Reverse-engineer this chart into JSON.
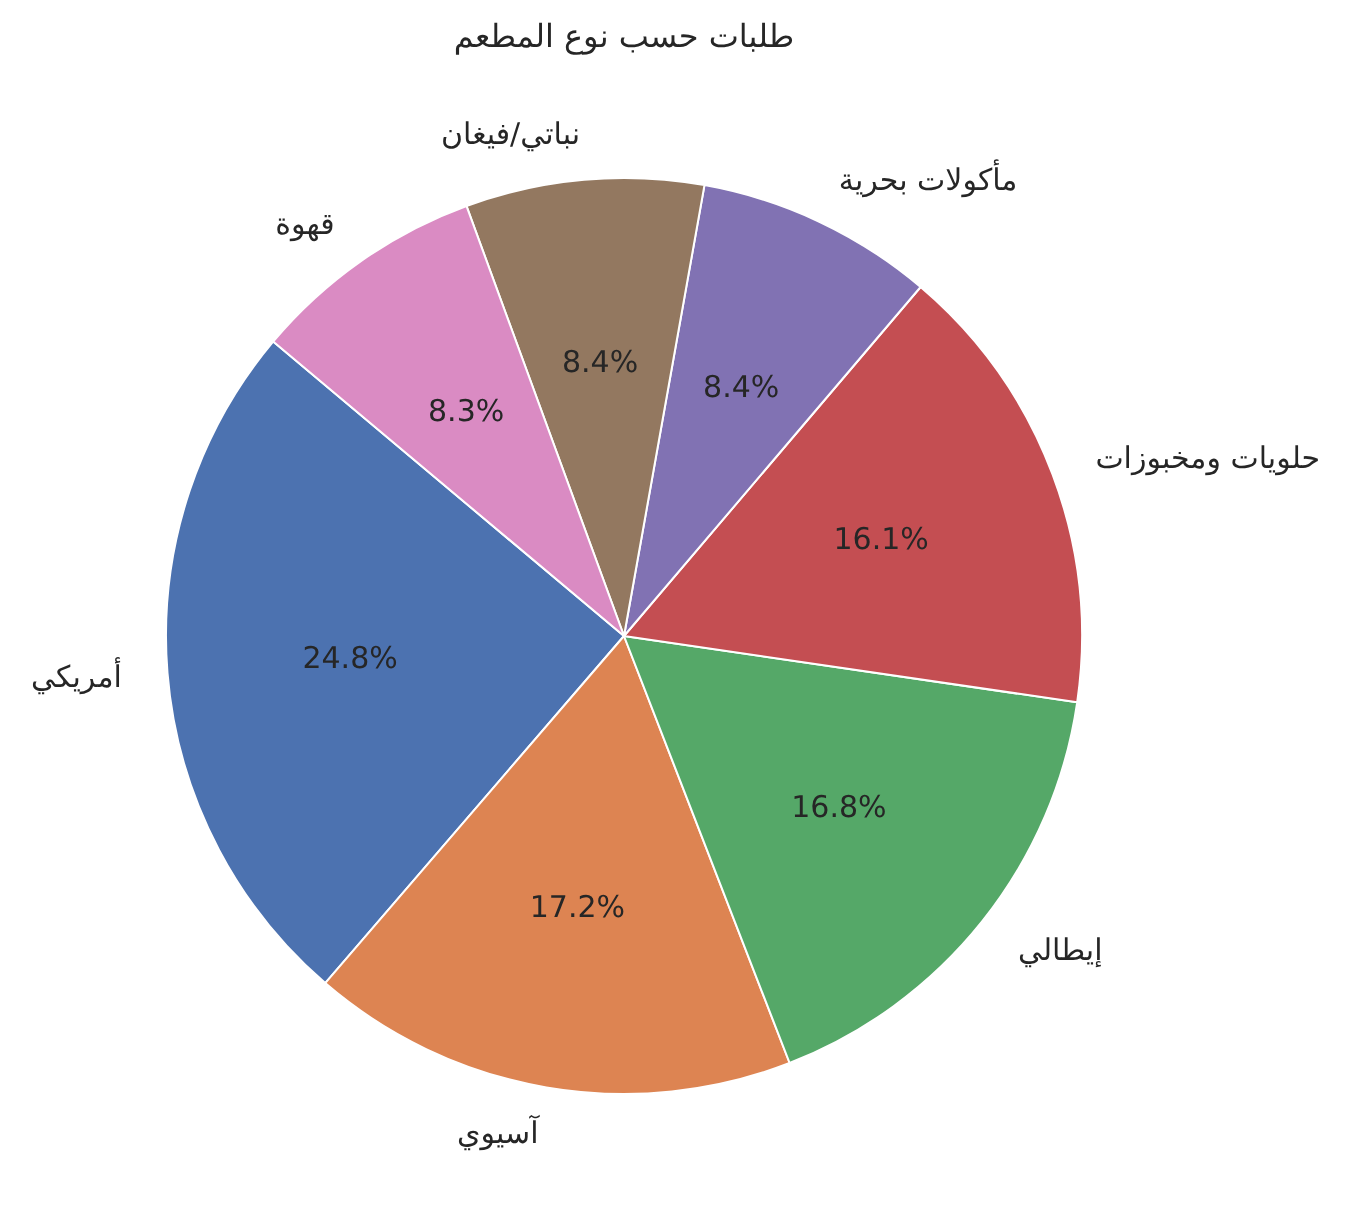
{
  "chart_data": {
    "type": "pie",
    "title": "طلبات حسب نوع المطعم",
    "categories": [
      "أمريكي",
      "آسيوي",
      "إيطالي",
      "حلويات ومخبوزات",
      "مأكولات بحرية",
      "نباتي/فيغان",
      "قهوة"
    ],
    "values": [
      24.8,
      17.2,
      16.8,
      16.1,
      8.4,
      8.4,
      8.3
    ],
    "value_labels": [
      "24.8%",
      "17.2%",
      "16.8%",
      "16.1%",
      "8.4%",
      "8.4%",
      "8.3%"
    ],
    "colors": [
      "#4c72b0",
      "#dd8452",
      "#55a868",
      "#c44e52",
      "#8172b3",
      "#937860",
      "#da8bc3"
    ]
  }
}
